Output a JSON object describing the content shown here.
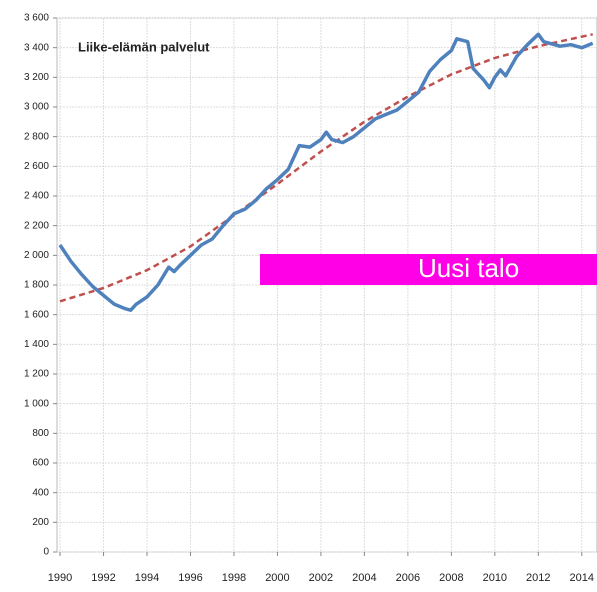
{
  "chart_data": {
    "type": "line",
    "title": "Liike-elämän palvelut",
    "annotation": "Uusi talo",
    "xlim": [
      1989.86,
      2014.7
    ],
    "xticks": [
      1990,
      1992,
      1994,
      1996,
      1998,
      2000,
      2002,
      2004,
      2006,
      2008,
      2010,
      2012,
      2014
    ],
    "ylim": [
      0,
      3600
    ],
    "yticks": [
      0,
      200,
      400,
      600,
      800,
      {
        "value": 1000,
        "label": "1 000"
      },
      {
        "value": 1200,
        "label": "1 200"
      },
      {
        "value": 1400,
        "label": "1 400"
      },
      {
        "value": 1600,
        "label": "1 600"
      },
      {
        "value": 1800,
        "label": "1 800"
      },
      {
        "value": 2000,
        "label": "2 000"
      },
      {
        "value": 2200,
        "label": "2 200"
      },
      {
        "value": 2400,
        "label": "2 400"
      },
      {
        "value": 2600,
        "label": "2 600"
      },
      {
        "value": 2800,
        "label": "2 800"
      },
      {
        "value": 3000,
        "label": "3 000"
      },
      {
        "value": 3200,
        "label": "3 200"
      },
      {
        "value": 3400,
        "label": "3 400"
      },
      {
        "value": 3600,
        "label": "3 600"
      }
    ],
    "grid": true,
    "series": [
      {
        "color": "#4f81bd",
        "style": "solid",
        "x": [
          1990,
          1990.5,
          1991,
          1991.5,
          1992,
          1992.5,
          1993,
          1993.25,
          1993.5,
          1994,
          1994.5,
          1995,
          1995.25,
          1995.5,
          1996,
          1996.5,
          1997,
          1997.5,
          1998,
          1998.5,
          1999,
          1999.5,
          2000,
          2000.5,
          2001,
          2001.5,
          2002,
          2002.25,
          2002.5,
          2003,
          2003.5,
          2004,
          2004.5,
          2005,
          2005.5,
          2006,
          2006.5,
          2007,
          2007.5,
          2008,
          2008.25,
          2008.75,
          2009,
          2009.5,
          2009.75,
          2010,
          2010.25,
          2010.5,
          2011,
          2011.5,
          2012,
          2012.25,
          2012.5,
          2013,
          2013.5,
          2014,
          2014.5
        ],
        "values": [
          2070,
          1960,
          1870,
          1790,
          1730,
          1670,
          1640,
          1630,
          1670,
          1720,
          1800,
          1920,
          1890,
          1930,
          2000,
          2070,
          2110,
          2200,
          2280,
          2310,
          2370,
          2450,
          2510,
          2580,
          2740,
          2730,
          2780,
          2830,
          2780,
          2760,
          2800,
          2860,
          2920,
          2950,
          2980,
          3040,
          3100,
          3240,
          3320,
          3380,
          3460,
          3440,
          3260,
          3180,
          3130,
          3200,
          3250,
          3210,
          3340,
          3420,
          3490,
          3440,
          3430,
          3410,
          3420,
          3400,
          3430
        ]
      },
      {
        "color": "#c0504d",
        "style": "dashed",
        "x": [
          1990,
          1992,
          1994,
          1996,
          1998,
          2000,
          2002,
          2004,
          2006,
          2008,
          2010,
          2012,
          2014.5
        ],
        "values": [
          1690,
          1780,
          1900,
          2060,
          2270,
          2480,
          2700,
          2900,
          3070,
          3220,
          3330,
          3410,
          3490
        ]
      }
    ]
  }
}
